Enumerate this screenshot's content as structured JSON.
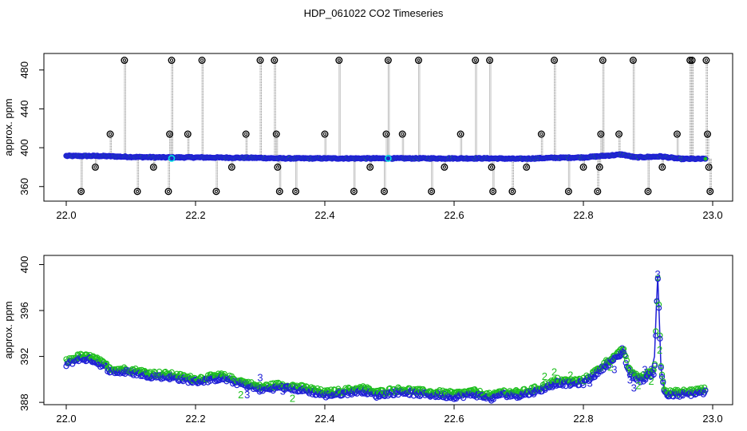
{
  "title": "HDP_061022  CO2 Timeseries",
  "chart_data": [
    {
      "type": "scatter",
      "ylabel": "approx. ppm",
      "xlim": [
        22.0,
        23.0
      ],
      "ylim": [
        345,
        497
      ],
      "x_ticks": [
        "22.0",
        "22.2",
        "22.4",
        "22.6",
        "22.8",
        "23.0"
      ],
      "x_tick_values": [
        22.0,
        22.2,
        22.4,
        22.6,
        22.8,
        23.0
      ],
      "y_ticks": [
        "360",
        "400",
        "440",
        "480"
      ],
      "y_tick_values": [
        360,
        400,
        440,
        480
      ],
      "baseline": [
        [
          22.0,
          391.5
        ],
        [
          22.05,
          391.5
        ],
        [
          22.1,
          390.5
        ],
        [
          22.15,
          390
        ],
        [
          22.2,
          390
        ],
        [
          22.3,
          389.5
        ],
        [
          22.33,
          389
        ],
        [
          22.35,
          389
        ],
        [
          22.4,
          389
        ],
        [
          22.5,
          389
        ],
        [
          22.6,
          389
        ],
        [
          22.66,
          389
        ],
        [
          22.7,
          388.5
        ],
        [
          22.75,
          389.5
        ],
        [
          22.8,
          390
        ],
        [
          22.84,
          392
        ],
        [
          22.86,
          393
        ],
        [
          22.88,
          390
        ],
        [
          22.9,
          390.5
        ],
        [
          22.92,
          391
        ],
        [
          22.95,
          388.5
        ],
        [
          22.99,
          388.5
        ]
      ],
      "outliers": [
        [
          22.023,
          355
        ],
        [
          22.045,
          380
        ],
        [
          22.068,
          414
        ],
        [
          22.09,
          490
        ],
        [
          22.11,
          355
        ],
        [
          22.135,
          380
        ],
        [
          22.158,
          355
        ],
        [
          22.16,
          414
        ],
        [
          22.163,
          490
        ],
        [
          22.188,
          414
        ],
        [
          22.21,
          490
        ],
        [
          22.232,
          355
        ],
        [
          22.256,
          380
        ],
        [
          22.278,
          414
        ],
        [
          22.3,
          490
        ],
        [
          22.322,
          490
        ],
        [
          22.325,
          414
        ],
        [
          22.327,
          380
        ],
        [
          22.33,
          355
        ],
        [
          22.355,
          355
        ],
        [
          22.4,
          414
        ],
        [
          22.422,
          490
        ],
        [
          22.445,
          355
        ],
        [
          22.47,
          380
        ],
        [
          22.492,
          355
        ],
        [
          22.495,
          414
        ],
        [
          22.498,
          490
        ],
        [
          22.52,
          414
        ],
        [
          22.545,
          490
        ],
        [
          22.565,
          355
        ],
        [
          22.585,
          380
        ],
        [
          22.61,
          414
        ],
        [
          22.633,
          490
        ],
        [
          22.655,
          490
        ],
        [
          22.658,
          380
        ],
        [
          22.66,
          355
        ],
        [
          22.69,
          355
        ],
        [
          22.712,
          380
        ],
        [
          22.735,
          414
        ],
        [
          22.755,
          490
        ],
        [
          22.777,
          355
        ],
        [
          22.8,
          380
        ],
        [
          22.822,
          355
        ],
        [
          22.825,
          380
        ],
        [
          22.827,
          414
        ],
        [
          22.83,
          490
        ],
        [
          22.855,
          414
        ],
        [
          22.877,
          490
        ],
        [
          22.9,
          355
        ],
        [
          22.922,
          380
        ],
        [
          22.945,
          414
        ],
        [
          22.965,
          490
        ],
        [
          22.968,
          490
        ],
        [
          22.99,
          490
        ],
        [
          22.992,
          414
        ],
        [
          22.994,
          380
        ],
        [
          22.996,
          355
        ]
      ],
      "cyan_points": [
        [
          22.163,
          389
        ],
        [
          22.498,
          389
        ]
      ],
      "colors": {
        "points": "#1f1fd6",
        "fill": "#1fbf1f",
        "outlier": "#000000",
        "cyan": "#00e0e0",
        "dropline": "#888888"
      }
    },
    {
      "type": "scatter",
      "ylabel": "approx. ppm",
      "xlim": [
        22.0,
        23.0
      ],
      "ylim": [
        387.8,
        400.8
      ],
      "x_ticks": [
        "22.0",
        "22.2",
        "22.4",
        "22.6",
        "22.8",
        "23.0"
      ],
      "x_tick_values": [
        22.0,
        22.2,
        22.4,
        22.6,
        22.8,
        23.0
      ],
      "y_ticks": [
        "388",
        "392",
        "396",
        "400"
      ],
      "y_tick_values": [
        388,
        392,
        396,
        400
      ],
      "series": [
        {
          "name": "",
          "values": [
            [
              22.0,
              391.3
            ],
            [
              22.02,
              391.8
            ],
            [
              22.04,
              391.7
            ],
            [
              22.05,
              391.4
            ],
            [
              22.07,
              390.7
            ],
            [
              22.1,
              390.6
            ],
            [
              22.13,
              390.3
            ],
            [
              22.16,
              390.2
            ],
            [
              22.2,
              389.8
            ],
            [
              22.24,
              390.1
            ],
            [
              22.27,
              389.6
            ],
            [
              22.3,
              389.1
            ],
            [
              22.33,
              389.3
            ],
            [
              22.35,
              389.2
            ],
            [
              22.38,
              388.9
            ],
            [
              22.4,
              388.6
            ],
            [
              22.43,
              388.8
            ],
            [
              22.46,
              389.0
            ],
            [
              22.48,
              388.6
            ],
            [
              22.5,
              388.8
            ],
            [
              22.52,
              388.9
            ],
            [
              22.55,
              388.7
            ],
            [
              22.58,
              388.6
            ],
            [
              22.6,
              388.5
            ],
            [
              22.63,
              388.7
            ],
            [
              22.66,
              388.3
            ],
            [
              22.67,
              388.7
            ],
            [
              22.7,
              388.6
            ],
            [
              22.73,
              389.0
            ],
            [
              22.76,
              389.7
            ],
            [
              22.78,
              389.6
            ],
            [
              22.8,
              389.7
            ],
            [
              22.82,
              390.5
            ],
            [
              22.84,
              391.5
            ],
            [
              22.855,
              392.0
            ],
            [
              22.862,
              392.5
            ],
            [
              22.868,
              391.0
            ],
            [
              22.872,
              390.5
            ],
            [
              22.88,
              390.2
            ],
            [
              22.89,
              389.9
            ],
            [
              22.9,
              390.3
            ],
            [
              22.91,
              390.6
            ],
            [
              22.915,
              399.0
            ],
            [
              22.92,
              391.0
            ],
            [
              22.925,
              389.0
            ],
            [
              22.93,
              388.6
            ],
            [
              22.96,
              388.7
            ],
            [
              22.99,
              388.9
            ]
          ]
        }
      ],
      "digit_labels": [
        [
          "3",
          22.915,
          399.2
        ],
        [
          "3",
          22.86,
          392.7
        ],
        [
          "3",
          22.848,
          390.9
        ],
        [
          "3",
          22.872,
          390.0
        ],
        [
          "3",
          22.878,
          389.3
        ],
        [
          "3",
          22.895,
          390.9
        ],
        [
          "3",
          22.905,
          390.9
        ],
        [
          "3",
          22.81,
          389.7
        ],
        [
          "2",
          22.74,
          390.3
        ],
        [
          "2",
          22.755,
          390.7
        ],
        [
          "2",
          22.78,
          390.4
        ],
        [
          "2",
          22.842,
          391.1
        ],
        [
          "2",
          22.885,
          389.5
        ],
        [
          "2",
          22.905,
          389.9
        ],
        [
          "2",
          22.918,
          392.6
        ],
        [
          "2",
          22.27,
          388.7
        ],
        [
          "2",
          22.35,
          388.4
        ],
        [
          "3",
          22.3,
          390.2
        ],
        [
          "3",
          22.34,
          389.3
        ],
        [
          "3",
          22.16,
          390.2
        ],
        [
          "3",
          22.28,
          388.7
        ],
        [
          "3",
          22.335,
          389.0
        ],
        [
          "1",
          22.925,
          389.5
        ]
      ],
      "colors": {
        "points": "#1f1fd6",
        "fill": "#1fbf1f"
      }
    }
  ]
}
